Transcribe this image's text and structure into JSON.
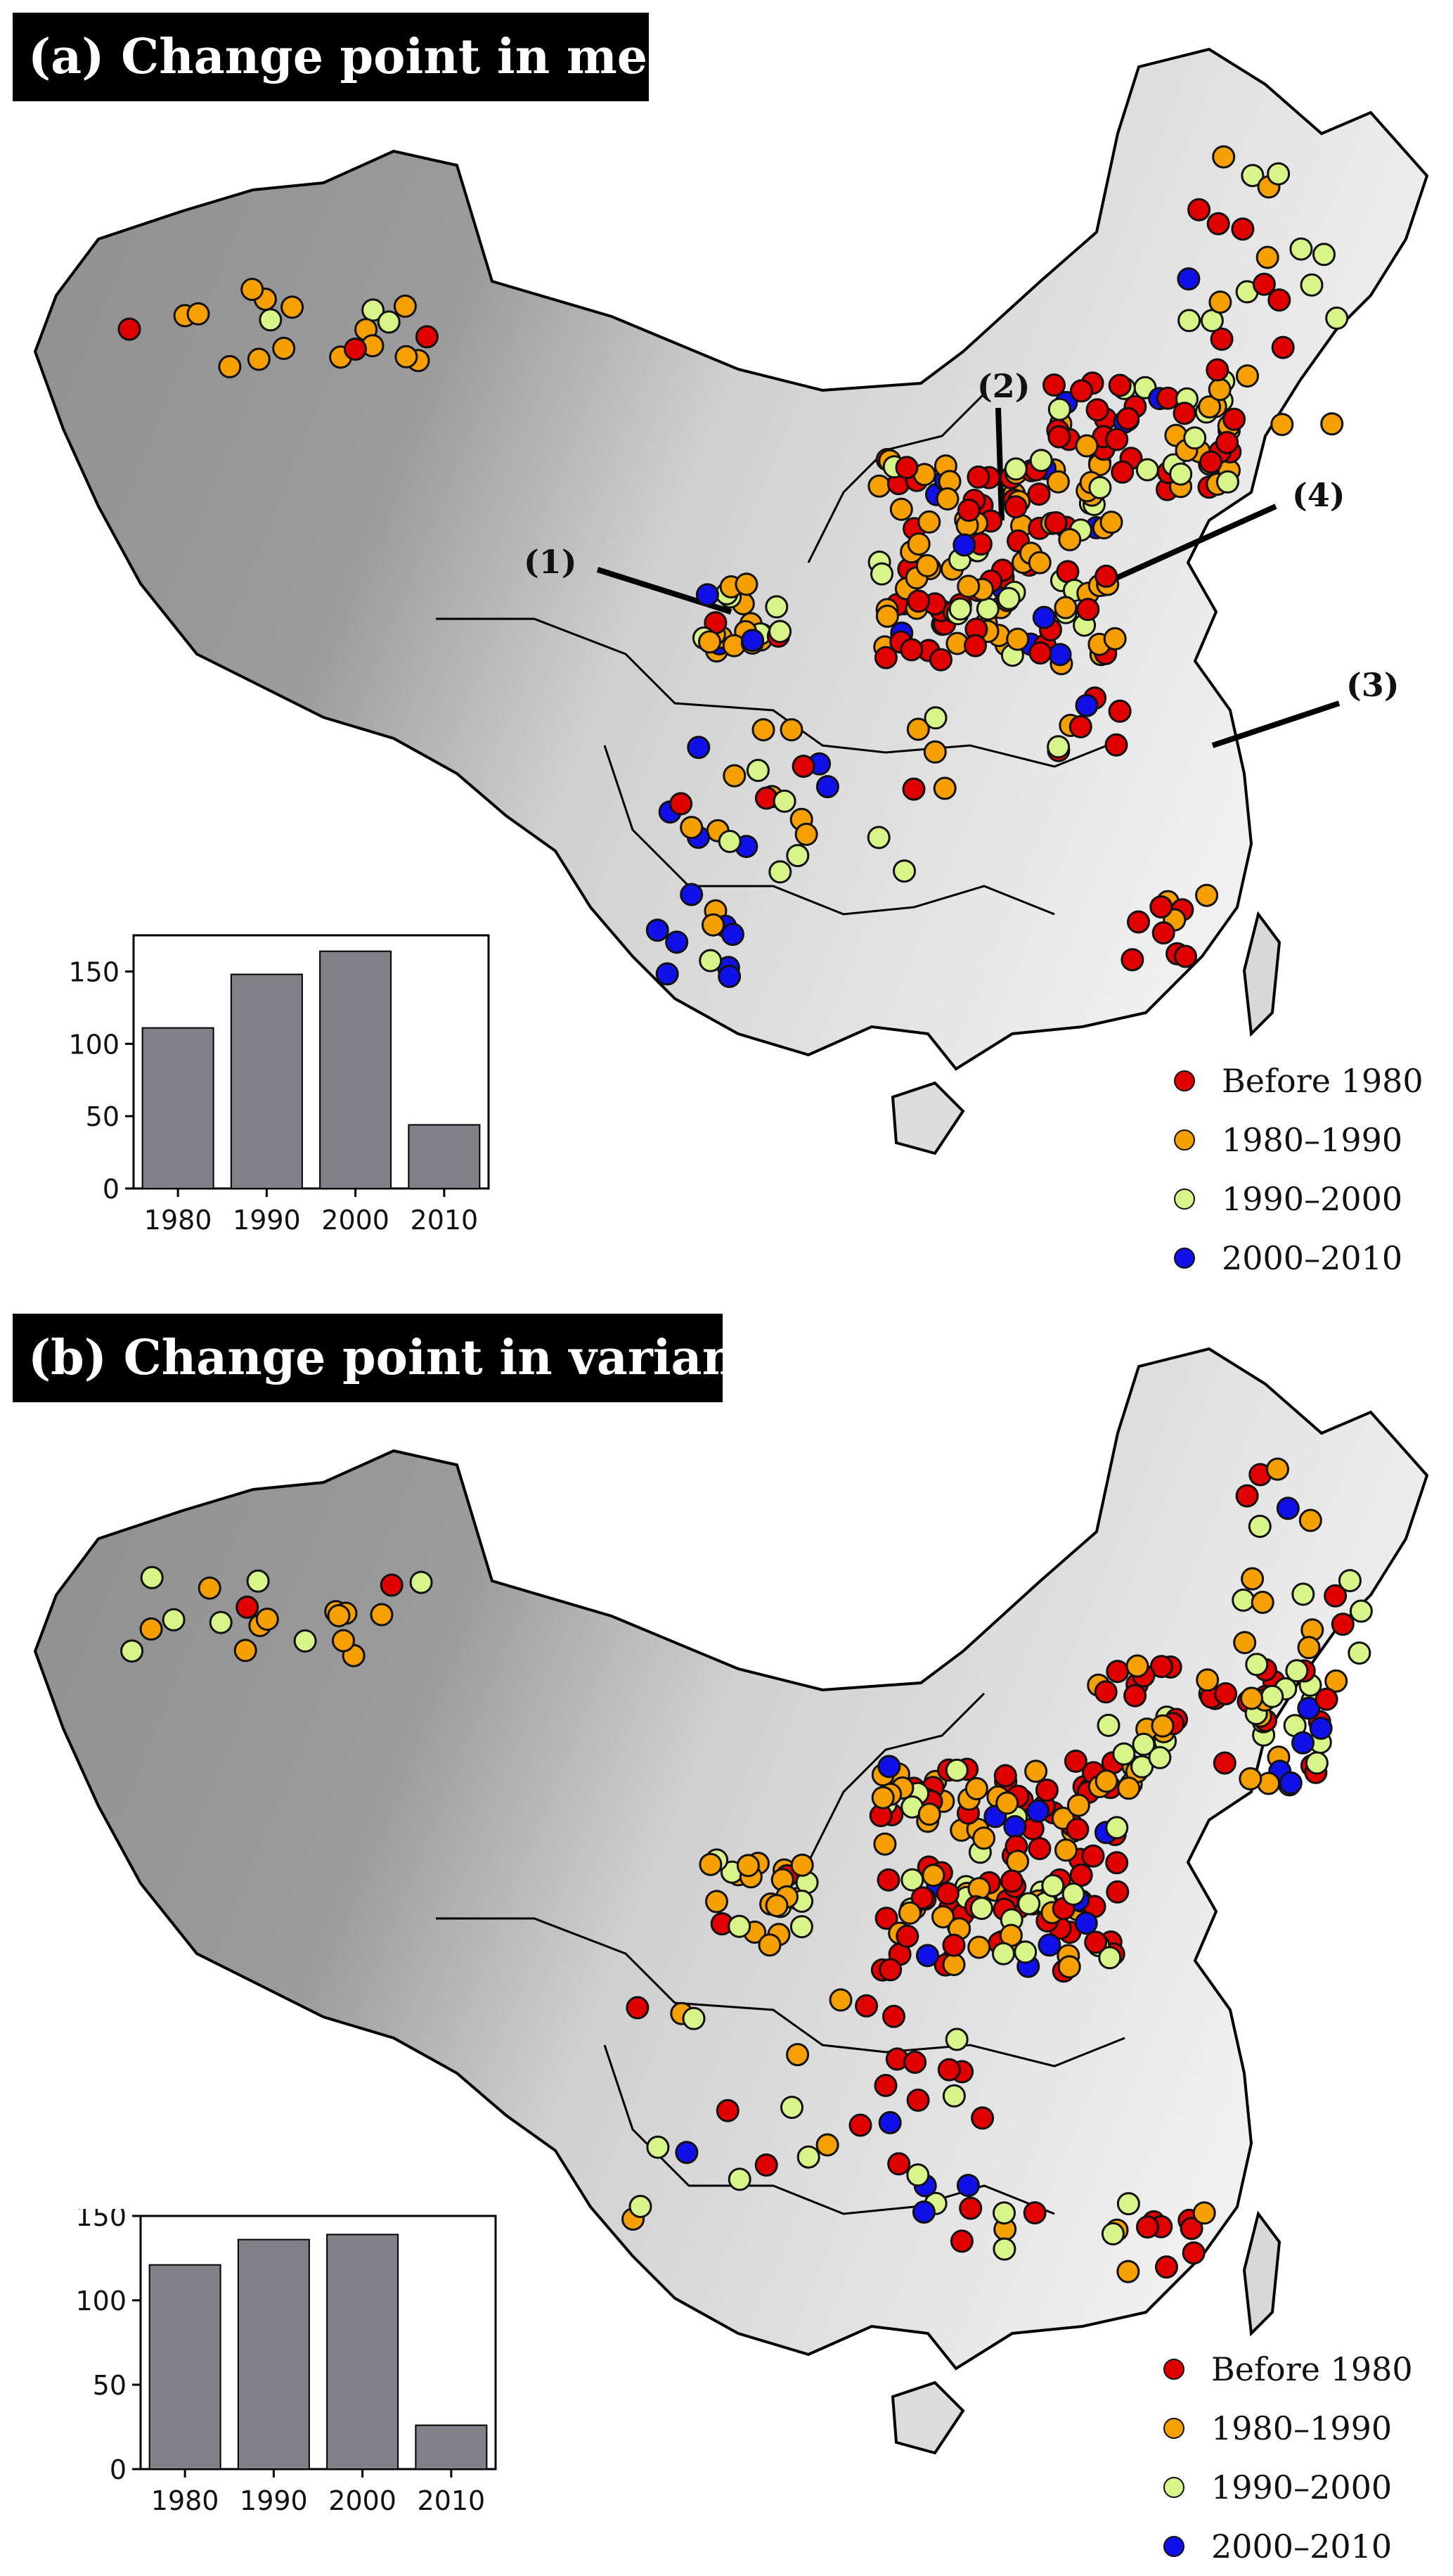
{
  "colors": {
    "before_1980": "#e00000",
    "1980_1990": "#f5a000",
    "1990_2000": "#d8f58a",
    "2000_2010": "#1010e8",
    "bar_fill": "#808086",
    "marker_edge": "#111111",
    "outline": "#000000"
  },
  "legend": [
    {
      "label": "Before 1980",
      "color_key": "before_1980"
    },
    {
      "label": "1980–1990",
      "color_key": "1980_1990"
    },
    {
      "label": "1990–2000",
      "color_key": "1990_2000"
    },
    {
      "label": "2000–2010",
      "color_key": "2000_2010"
    }
  ],
  "panel_a": {
    "title": "(a) Change point in mean",
    "annotations": [
      "(1)",
      "(2)",
      "(3)",
      "(4)"
    ]
  },
  "panel_b": {
    "title": "(b) Change point in variance"
  },
  "chart_data": [
    {
      "type": "bar",
      "panel": "a",
      "categories": [
        "1980",
        "1990",
        "2000",
        "2010"
      ],
      "values": [
        111,
        148,
        164,
        44
      ],
      "ylim": [
        0,
        175
      ],
      "yticks": [
        0,
        50,
        100,
        150
      ],
      "xlabel": "",
      "ylabel": "",
      "grid": false
    },
    {
      "type": "bar",
      "panel": "b",
      "categories": [
        "1980",
        "1990",
        "2000",
        "2010"
      ],
      "values": [
        121,
        136,
        139,
        26
      ],
      "ylim": [
        0,
        150
      ],
      "yticks": [
        0,
        50,
        100,
        150
      ],
      "xlabel": "",
      "ylabel": "",
      "grid": false
    }
  ]
}
